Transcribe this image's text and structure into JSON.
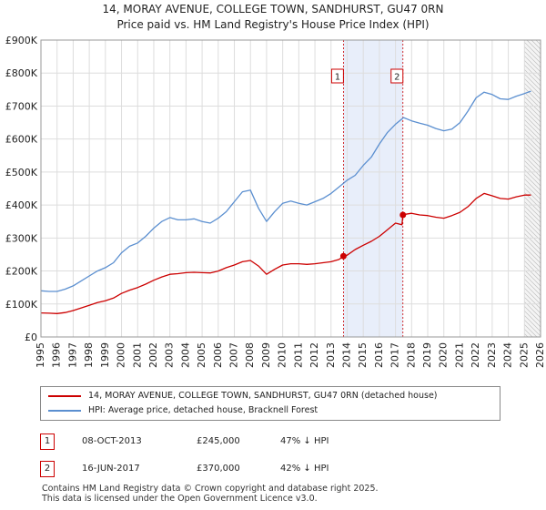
{
  "title": "14, MORAY AVENUE, COLLEGE TOWN, SANDHURST, GU47 0RN",
  "subtitle": "Price paid vs. HM Land Registry's House Price Index (HPI)",
  "legend": {
    "property_label": "14, MORAY AVENUE, COLLEGE TOWN, SANDHURST, GU47 0RN (detached house)",
    "hpi_label": "HPI: Average price, detached house, Bracknell Forest"
  },
  "transactions": [
    {
      "num": "1",
      "date": "08-OCT-2013",
      "price": "£245,000",
      "hpi": "47% ↓ HPI"
    },
    {
      "num": "2",
      "date": "16-JUN-2017",
      "price": "£370,000",
      "hpi": "42% ↓ HPI"
    }
  ],
  "footer": [
    "Contains HM Land Registry data © Crown copyright and database right 2025.",
    "This data is licensed under the Open Government Licence v3.0."
  ],
  "colors": {
    "property": "#cc0000",
    "hpi": "#5b8fd0",
    "shade": "#e8eefa",
    "grid": "#dddddd",
    "marker": "#cc0000"
  },
  "chart_data": {
    "type": "line",
    "title": "14, MORAY AVENUE, COLLEGE TOWN, SANDHURST, GU47 0RN",
    "subtitle": "Price paid vs. HM Land Registry's House Price Index (HPI)",
    "xlabel": "",
    "ylabel": "",
    "xlim": [
      1995,
      2026
    ],
    "ylim": [
      0,
      900000
    ],
    "yticks": [
      0,
      100000,
      200000,
      300000,
      400000,
      500000,
      600000,
      700000,
      800000,
      900000
    ],
    "ytick_labels": [
      "£0",
      "£100K",
      "£200K",
      "£300K",
      "£400K",
      "£500K",
      "£600K",
      "£700K",
      "£800K",
      "£900K"
    ],
    "xticks": [
      1995,
      1996,
      1997,
      1998,
      1999,
      2000,
      2001,
      2002,
      2003,
      2004,
      2005,
      2006,
      2007,
      2008,
      2009,
      2010,
      2011,
      2012,
      2013,
      2014,
      2015,
      2016,
      2017,
      2018,
      2019,
      2020,
      2021,
      2022,
      2023,
      2024,
      2025,
      2026
    ],
    "grid": true,
    "shaded_span": [
      2013.77,
      2017.46
    ],
    "future_hatch_from": 2025.0,
    "series": [
      {
        "name": "14, MORAY AVENUE, COLLEGE TOWN, SANDHURST, GU47 0RN (detached house)",
        "color": "#cc0000",
        "x": [
          1995.0,
          1995.5,
          1996.0,
          1996.5,
          1997.0,
          1997.5,
          1998.0,
          1998.5,
          1999.0,
          1999.5,
          2000.0,
          2000.5,
          2001.0,
          2001.5,
          2002.0,
          2002.5,
          2003.0,
          2003.5,
          2004.0,
          2004.5,
          2005.0,
          2005.5,
          2006.0,
          2006.5,
          2007.0,
          2007.5,
          2008.0,
          2008.5,
          2009.0,
          2009.5,
          2010.0,
          2010.5,
          2011.0,
          2011.5,
          2012.0,
          2012.5,
          2013.0,
          2013.5,
          2013.77,
          2014.0,
          2014.5,
          2015.0,
          2015.5,
          2016.0,
          2016.5,
          2017.0,
          2017.4,
          2017.46,
          2017.6,
          2018.0,
          2018.5,
          2019.0,
          2019.5,
          2020.0,
          2020.5,
          2021.0,
          2021.5,
          2022.0,
          2022.5,
          2023.0,
          2023.5,
          2024.0,
          2024.5,
          2025.0,
          2025.4
        ],
        "values": [
          73000,
          72000,
          71000,
          74000,
          80000,
          88000,
          96000,
          104000,
          110000,
          118000,
          132000,
          142000,
          150000,
          160000,
          172000,
          182000,
          190000,
          192000,
          195000,
          196000,
          195000,
          194000,
          200000,
          210000,
          218000,
          228000,
          232000,
          215000,
          190000,
          205000,
          218000,
          222000,
          222000,
          220000,
          222000,
          225000,
          228000,
          235000,
          245000,
          248000,
          265000,
          278000,
          290000,
          305000,
          325000,
          345000,
          340000,
          370000,
          372000,
          375000,
          370000,
          368000,
          363000,
          360000,
          368000,
          378000,
          395000,
          420000,
          435000,
          428000,
          420000,
          418000,
          425000,
          430000,
          430000
        ]
      },
      {
        "name": "HPI: Average price, detached house, Bracknell Forest",
        "color": "#5b8fd0",
        "x": [
          1995.0,
          1995.5,
          1996.0,
          1996.5,
          1997.0,
          1997.5,
          1998.0,
          1998.5,
          1999.0,
          1999.5,
          2000.0,
          2000.5,
          2001.0,
          2001.5,
          2002.0,
          2002.5,
          2003.0,
          2003.5,
          2004.0,
          2004.5,
          2005.0,
          2005.5,
          2006.0,
          2006.5,
          2007.0,
          2007.5,
          2008.0,
          2008.5,
          2009.0,
          2009.5,
          2010.0,
          2010.5,
          2011.0,
          2011.5,
          2012.0,
          2012.5,
          2013.0,
          2013.5,
          2014.0,
          2014.5,
          2015.0,
          2015.5,
          2016.0,
          2016.5,
          2017.0,
          2017.5,
          2018.0,
          2018.5,
          2019.0,
          2019.5,
          2020.0,
          2020.5,
          2021.0,
          2021.5,
          2022.0,
          2022.5,
          2023.0,
          2023.5,
          2024.0,
          2024.5,
          2025.0,
          2025.4
        ],
        "values": [
          140000,
          138000,
          138000,
          145000,
          155000,
          170000,
          185000,
          200000,
          210000,
          225000,
          255000,
          275000,
          285000,
          305000,
          330000,
          350000,
          362000,
          355000,
          355000,
          358000,
          350000,
          345000,
          360000,
          380000,
          410000,
          440000,
          445000,
          390000,
          350000,
          380000,
          405000,
          412000,
          405000,
          400000,
          410000,
          420000,
          435000,
          455000,
          475000,
          490000,
          520000,
          545000,
          585000,
          620000,
          645000,
          665000,
          655000,
          648000,
          642000,
          632000,
          625000,
          630000,
          650000,
          685000,
          725000,
          742000,
          735000,
          722000,
          720000,
          730000,
          738000,
          745000
        ]
      }
    ],
    "annotations": [
      {
        "label": "1",
        "x": 2013.77,
        "y": 245000
      },
      {
        "label": "2",
        "x": 2017.46,
        "y": 370000
      }
    ]
  }
}
